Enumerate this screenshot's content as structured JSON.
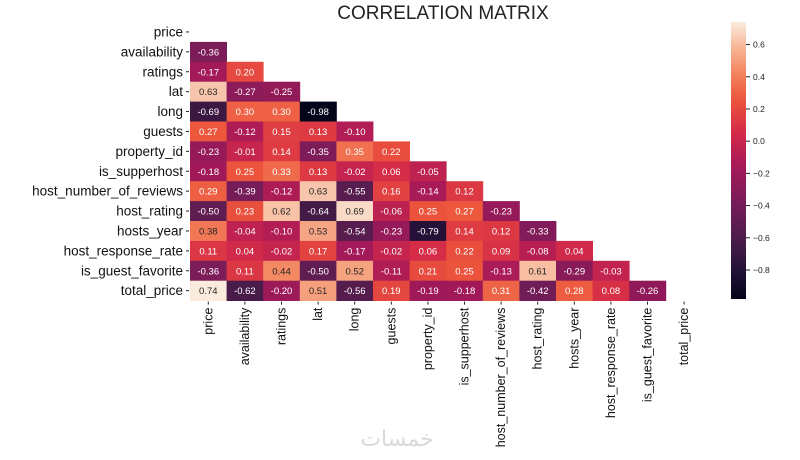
{
  "chart_data": {
    "type": "heatmap",
    "title": "CORRELATION MATRIX",
    "variables": [
      "price",
      "availability",
      "ratings",
      "lat",
      "long",
      "guests",
      "property_id",
      "is_supperhost",
      "host_number_of_reviews",
      "host_rating",
      "hosts_year",
      "host_response_rate",
      "is_guest_favorite",
      "total_price"
    ],
    "lower_triangle": [
      [],
      [
        -0.36
      ],
      [
        -0.17,
        0.2
      ],
      [
        0.63,
        -0.27,
        -0.25
      ],
      [
        -0.69,
        0.3,
        0.3,
        -0.98
      ],
      [
        0.27,
        -0.12,
        0.15,
        0.13,
        -0.1
      ],
      [
        -0.23,
        -0.01,
        0.14,
        -0.35,
        0.35,
        0.22
      ],
      [
        -0.18,
        0.25,
        0.33,
        0.13,
        -0.02,
        0.06,
        -0.05
      ],
      [
        0.29,
        -0.39,
        -0.12,
        0.63,
        -0.55,
        0.16,
        -0.14,
        0.12
      ],
      [
        -0.5,
        0.23,
        0.62,
        -0.64,
        0.69,
        -0.06,
        0.25,
        0.27,
        -0.23
      ],
      [
        0.38,
        -0.04,
        -0.1,
        0.53,
        -0.54,
        -0.23,
        -0.79,
        0.14,
        0.12,
        -0.33
      ],
      [
        0.11,
        0.04,
        -0.02,
        0.17,
        -0.17,
        -0.02,
        0.06,
        0.22,
        0.09,
        -0.08,
        0.04
      ],
      [
        -0.36,
        0.11,
        0.44,
        -0.5,
        0.52,
        -0.11,
        0.21,
        0.25,
        -0.13,
        0.61,
        -0.29,
        -0.03
      ],
      [
        0.74,
        -0.62,
        -0.2,
        0.51,
        -0.56,
        0.19,
        -0.19,
        -0.18,
        0.31,
        -0.42,
        0.28,
        0.08,
        -0.26
      ]
    ],
    "value_format": "0.00",
    "colorbar": {
      "range": [
        -0.98,
        0.74
      ],
      "ticks": [
        -0.8,
        -0.6,
        -0.4,
        -0.2,
        0.0,
        0.2,
        0.4,
        0.6
      ],
      "tick_labels": [
        "−0.8",
        "−0.6",
        "−0.4",
        "−0.2",
        "0.0",
        "0.2",
        "0.4",
        "0.6"
      ],
      "colormap": "rocket"
    },
    "mask": "upper_triangle_including_diagonal"
  },
  "watermark": "خمسات"
}
